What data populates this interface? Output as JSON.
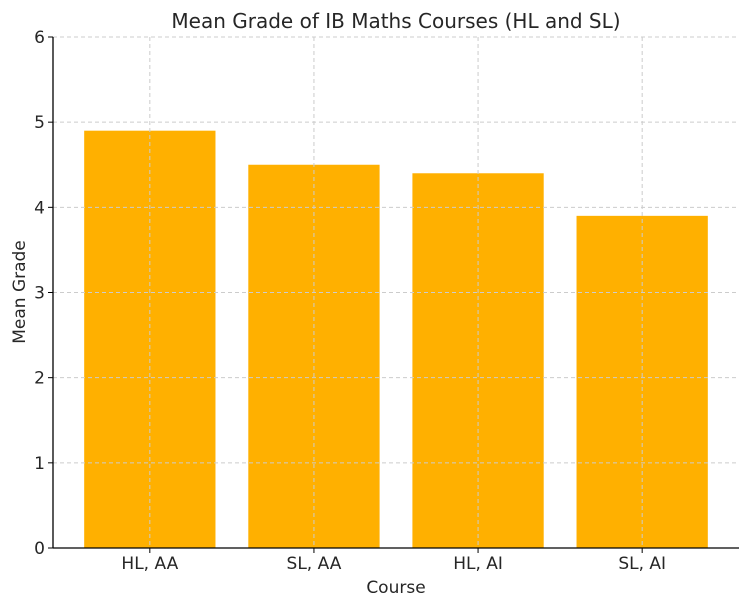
{
  "chart_data": {
    "type": "bar",
    "title": "Mean Grade of IB Maths Courses (HL and SL)",
    "xlabel": "Course",
    "ylabel": "Mean Grade",
    "categories": [
      "HL, AA",
      "SL, AA",
      "HL, AI",
      "SL, AI"
    ],
    "values": [
      4.9,
      4.5,
      4.4,
      3.9
    ],
    "ylim": [
      0,
      6
    ],
    "yticks": [
      0,
      1,
      2,
      3,
      4,
      5,
      6
    ],
    "grid": true,
    "bar_color": "#FFB000",
    "grid_color": "#CCCCCC"
  }
}
